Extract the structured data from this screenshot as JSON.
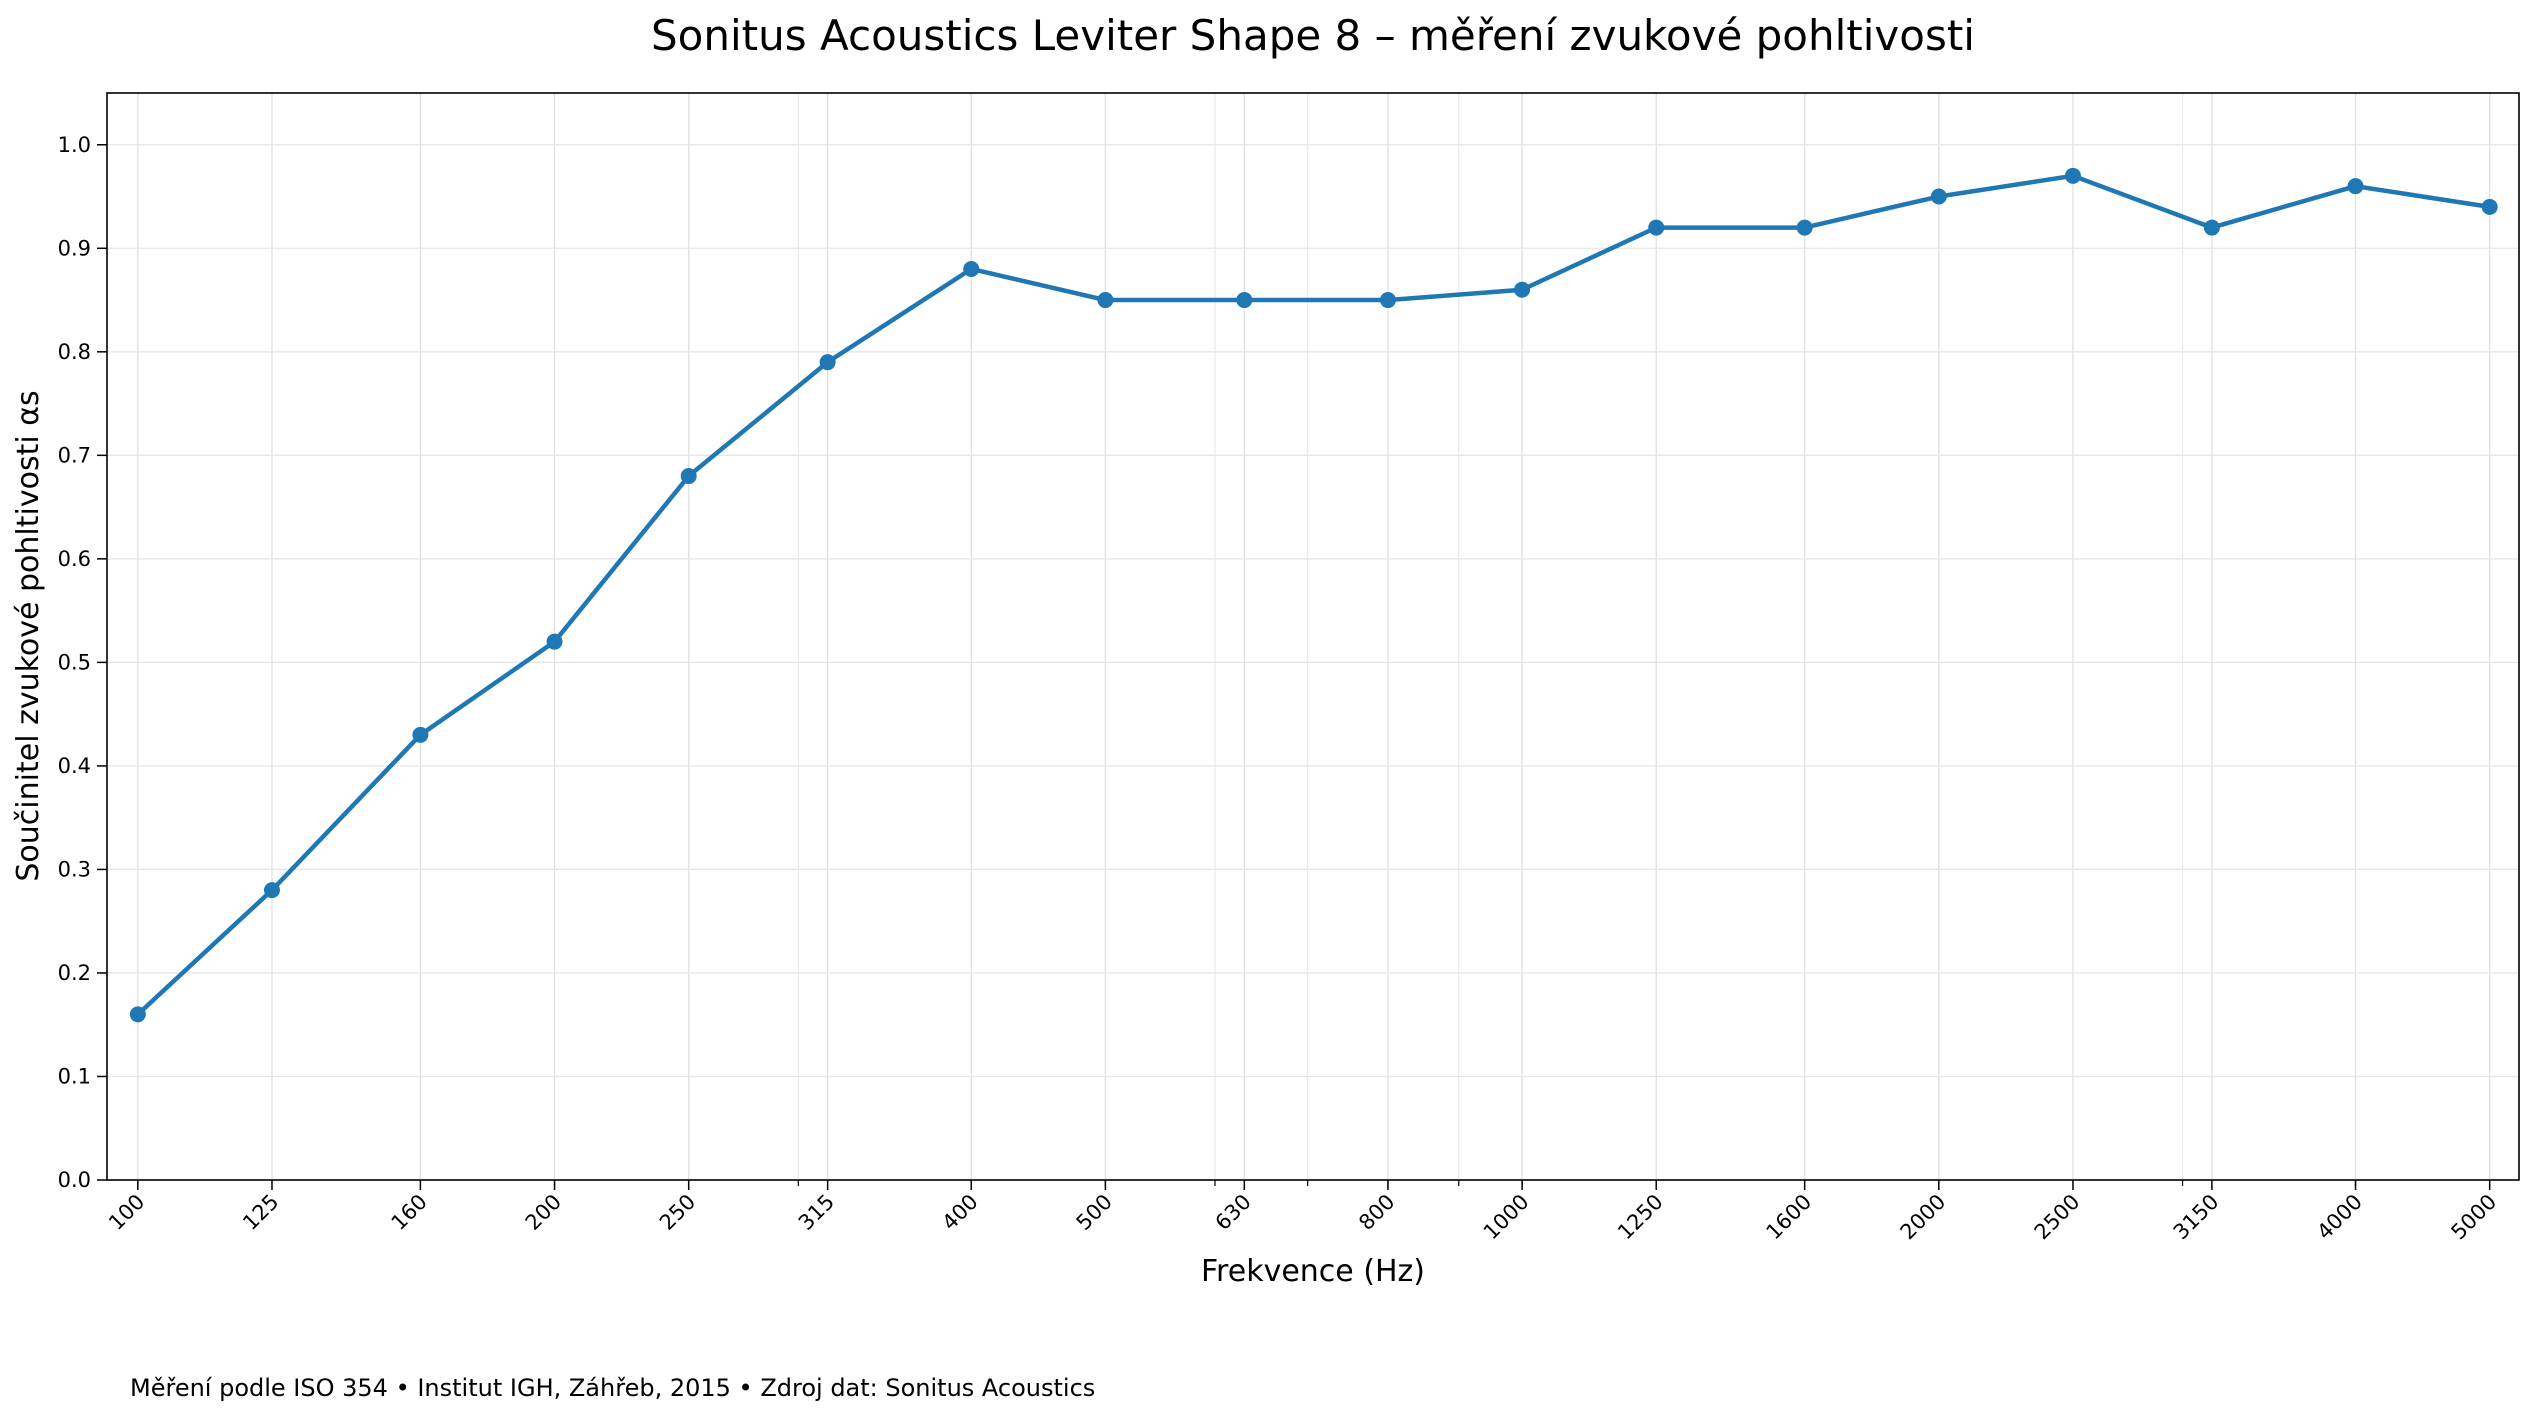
{
  "chart_data": {
    "type": "line",
    "title": "Sonitus Acoustics Leviter Shape 8 – měření zvukové pohltivosti",
    "xlabel": "Frekvence (Hz)",
    "ylabel": "Součinitel zvukové pohltivosti αs",
    "x_scale": "log",
    "x": [
      100,
      125,
      160,
      200,
      250,
      315,
      400,
      500,
      630,
      800,
      1000,
      1250,
      1600,
      2000,
      2500,
      3150,
      4000,
      5000
    ],
    "x_tick_labels": [
      "100",
      "125",
      "160",
      "200",
      "250",
      "315",
      "400",
      "500",
      "630",
      "800",
      "1000",
      "1250",
      "1600",
      "2000",
      "2500",
      "3150",
      "4000",
      "5000"
    ],
    "xlim": [
      95,
      5250
    ],
    "ylim": [
      0.0,
      1.05
    ],
    "y_ticks": [
      0.0,
      0.1,
      0.2,
      0.3,
      0.4,
      0.5,
      0.6,
      0.7,
      0.8,
      0.9,
      1.0
    ],
    "y_tick_labels": [
      "0.0",
      "0.1",
      "0.2",
      "0.3",
      "0.4",
      "0.5",
      "0.6",
      "0.7",
      "0.8",
      "0.9",
      "1.0"
    ],
    "series": [
      {
        "color": "#1f77b4",
        "marker": "circle",
        "values": [
          0.16,
          0.28,
          0.43,
          0.52,
          0.68,
          0.79,
          0.88,
          0.85,
          0.85,
          0.85,
          0.86,
          0.92,
          0.92,
          0.95,
          0.97,
          0.92,
          0.96,
          0.94
        ]
      }
    ],
    "grid": true,
    "legend": "none"
  },
  "footnote": "Měření podle ISO 354 • Institut IGH, Záhřeb, 2015 • Zdroj dat: Sonitus Acoustics"
}
